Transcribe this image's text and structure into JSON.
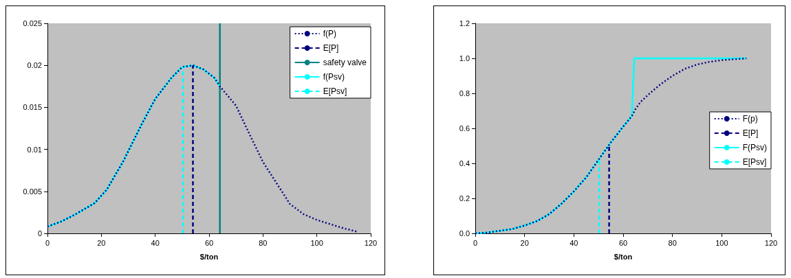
{
  "chart_data": [
    {
      "type": "line",
      "xlabel": "$/ton",
      "xlim": [
        0,
        120
      ],
      "xticks": [
        0,
        20,
        40,
        60,
        80,
        100,
        120
      ],
      "ylim": [
        0,
        0.025
      ],
      "yticks": [
        0,
        0.005,
        0.01,
        0.015,
        0.02,
        0.025
      ],
      "grid": false,
      "legend": "top right",
      "series": [
        {
          "name": "f(P)",
          "color": "#000080",
          "line_style": "dotted",
          "x": [
            0,
            5,
            10,
            17.5,
            22,
            28,
            35,
            40,
            46,
            50,
            54,
            58,
            62,
            64,
            70,
            75,
            80,
            85,
            90,
            95,
            100,
            105,
            110,
            115
          ],
          "values": [
            0.0008,
            0.0014,
            0.0022,
            0.0036,
            0.0052,
            0.0085,
            0.013,
            0.016,
            0.0185,
            0.0198,
            0.02,
            0.0195,
            0.0185,
            0.0175,
            0.0152,
            0.0118,
            0.0085,
            0.006,
            0.0035,
            0.0023,
            0.0016,
            0.0011,
            0.0006,
            0.0002
          ]
        },
        {
          "name": "E[P]",
          "color": "#000080",
          "line_style": "dashed",
          "x": [
            54,
            54
          ],
          "values": [
            0,
            0.02
          ]
        },
        {
          "name": "safety valve",
          "color": "#008080",
          "line_style": "solid",
          "x": [
            64,
            64
          ],
          "values": [
            0,
            0.025
          ]
        },
        {
          "name": "f(Psv)",
          "color": "#00ffff",
          "line_style": "solid",
          "x": [
            0,
            5,
            10,
            17.5,
            22,
            28,
            35,
            40,
            46,
            50,
            54,
            58,
            62,
            64
          ],
          "values": [
            0.0008,
            0.0014,
            0.0022,
            0.0036,
            0.0052,
            0.0085,
            0.013,
            0.016,
            0.0185,
            0.0198,
            0.02,
            0.0195,
            0.0185,
            0.0175
          ]
        },
        {
          "name": "E[Psv]",
          "color": "#00ffff",
          "line_style": "dashed",
          "x": [
            50.3,
            50.3
          ],
          "values": [
            0,
            0.0198
          ]
        }
      ]
    },
    {
      "type": "line",
      "xlabel": "$/ton",
      "xlim": [
        0,
        120
      ],
      "xticks": [
        0,
        20,
        40,
        60,
        80,
        100,
        120
      ],
      "ylim": [
        0,
        1.2
      ],
      "yticks": [
        {
          "value": 0,
          "label": "0.0"
        },
        {
          "value": 0.2,
          "label": "0.2"
        },
        {
          "value": 0.4,
          "label": "0.4"
        },
        {
          "value": 0.6,
          "label": "0.6"
        },
        {
          "value": 0.8,
          "label": "0.8"
        },
        {
          "value": 1,
          "label": "1.0"
        },
        {
          "value": 1.2,
          "label": "1.2"
        }
      ],
      "grid": false,
      "legend": "right",
      "series": [
        {
          "name": "F(p)",
          "color": "#000080",
          "line_style": "dotted",
          "x": [
            0,
            5,
            10,
            15,
            20,
            25,
            30,
            35,
            40,
            45,
            50,
            55,
            60,
            63.5,
            65,
            67,
            70,
            75,
            80,
            85,
            90,
            95,
            100,
            110
          ],
          "values": [
            0,
            0.005,
            0.015,
            0.025,
            0.045,
            0.07,
            0.11,
            0.17,
            0.24,
            0.32,
            0.42,
            0.52,
            0.61,
            0.67,
            0.71,
            0.75,
            0.79,
            0.85,
            0.9,
            0.94,
            0.965,
            0.98,
            0.99,
            1
          ]
        },
        {
          "name": "E[P]",
          "color": "#000080",
          "line_style": "dashed",
          "x": [
            54.3,
            54.3
          ],
          "values": [
            0,
            0.5
          ]
        },
        {
          "name": "F(Psv)",
          "color": "#00ffff",
          "line_style": "solid",
          "x": [
            0,
            5,
            10,
            15,
            20,
            25,
            30,
            35,
            40,
            45,
            50,
            55,
            60,
            63.5,
            64.5,
            110
          ],
          "values": [
            0,
            0.005,
            0.015,
            0.025,
            0.045,
            0.07,
            0.11,
            0.17,
            0.24,
            0.32,
            0.42,
            0.52,
            0.61,
            0.67,
            1,
            1
          ]
        },
        {
          "name": "E[Psv]",
          "color": "#00ffff",
          "line_style": "dashed",
          "x": [
            50.3,
            50.3
          ],
          "values": [
            0,
            0.42
          ]
        }
      ]
    }
  ]
}
